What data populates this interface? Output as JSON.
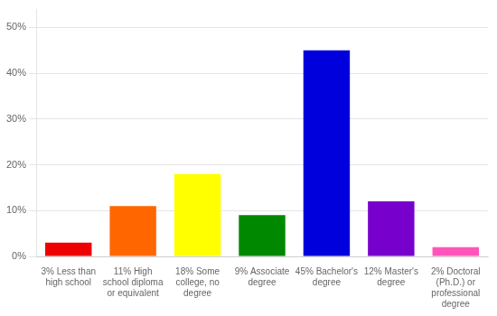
{
  "chart_data": {
    "type": "bar",
    "categories": [
      "3% Less than\nhigh school",
      "11% High\nschool diploma\nor equivalent",
      "18% Some\ncollege, no\ndegree",
      "9% Associate\ndegree",
      "45% Bachelor's\ndegree",
      "12% Master's\ndegree",
      "2% Doctoral\n(Ph.D.) or\nprofessional\ndegree"
    ],
    "values": [
      3,
      11,
      18,
      9,
      45,
      12,
      2
    ],
    "colors": [
      "#ee0000",
      "#ff6600",
      "#ffff00",
      "#008800",
      "#0000dd",
      "#7700cc",
      "#ff55bb"
    ],
    "ylim": [
      0,
      54
    ],
    "yticks": [
      {
        "value": 0,
        "label": "0%"
      },
      {
        "value": 10,
        "label": "10%"
      },
      {
        "value": 20,
        "label": "20%"
      },
      {
        "value": 30,
        "label": "30%"
      },
      {
        "value": 40,
        "label": "40%"
      },
      {
        "value": 50,
        "label": "50%"
      }
    ],
    "grid": true
  }
}
